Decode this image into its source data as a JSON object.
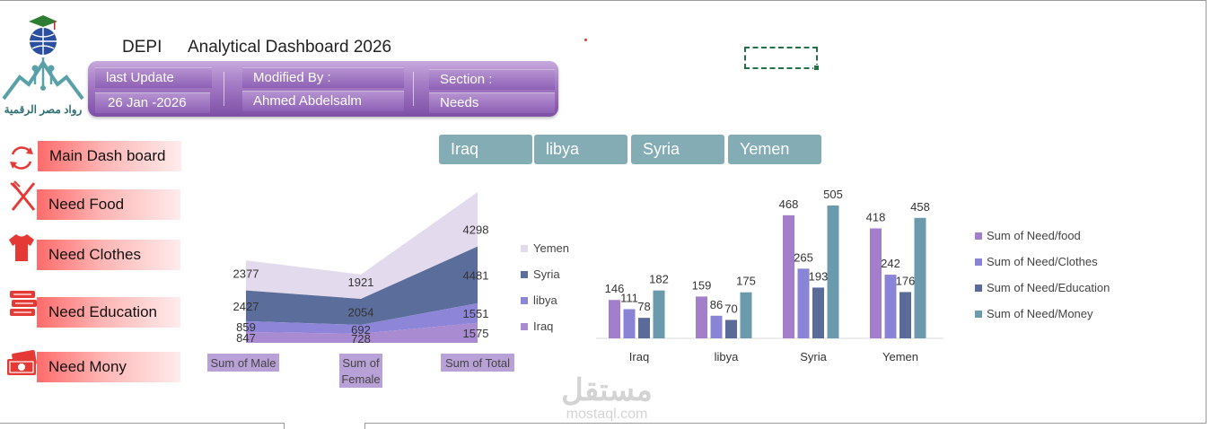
{
  "header": {
    "depi": "DEPI",
    "title": "Analytical Dashboard 2026",
    "logo_caption": "رواد مصر الرقمية"
  },
  "info": {
    "last_update_label": "last Update",
    "last_update_value": "26 Jan -2026",
    "modified_by_label": "Modified By :",
    "modified_by_value": "Ahmed Abdelsalm",
    "section_label": "Section :",
    "section_value": "Needs"
  },
  "nav": {
    "items": [
      {
        "label": "Main Dash board",
        "icon": "refresh-icon"
      },
      {
        "label": "Need Food",
        "icon": "fork-knife-icon"
      },
      {
        "label": "Need Clothes",
        "icon": "tshirt-icon"
      },
      {
        "label": "Need Education",
        "icon": "books-icon"
      },
      {
        "label": "Need Mony",
        "icon": "money-icon"
      }
    ]
  },
  "slicer": {
    "countries": [
      "Iraq",
      "libya",
      "Syria",
      "Yemen"
    ]
  },
  "watermark": {
    "arabic": "مستقل",
    "latin": "mostaql.com"
  },
  "colors": {
    "iraq": "#a98bd2",
    "libya": "#8c85d8",
    "syria": "#5a6d9b",
    "yemen": "#e4daee",
    "food": "#a37fcb",
    "clothes": "#8a84d6",
    "education": "#5a6b9a",
    "money": "#6a9aac",
    "slicer": "#84acb4",
    "nav_red": "#ff6b6b",
    "panel_purple": "#8e60b6"
  },
  "chart_data": [
    {
      "type": "area",
      "stacked": true,
      "categories": [
        "Sum of Male",
        "Sum of Female",
        "Sum of Total"
      ],
      "series": [
        {
          "name": "Iraq",
          "values": [
            847,
            728,
            1575
          ]
        },
        {
          "name": "libya",
          "values": [
            859,
            692,
            1551
          ]
        },
        {
          "name": "Syria",
          "values": [
            2427,
            2054,
            4481
          ]
        },
        {
          "name": "Yemen",
          "values": [
            2377,
            1921,
            4298
          ]
        }
      ],
      "legend_position": "right",
      "grid": false
    },
    {
      "type": "bar",
      "categories": [
        "Iraq",
        "libya",
        "Syria",
        "Yemen"
      ],
      "series": [
        {
          "name": "Sum of Need/food",
          "values": [
            146,
            159,
            468,
            418
          ]
        },
        {
          "name": "Sum of Need/Clothes",
          "values": [
            111,
            86,
            265,
            242
          ]
        },
        {
          "name": "Sum of Need/Education",
          "values": [
            78,
            70,
            193,
            176
          ]
        },
        {
          "name": "Sum of Need/Money",
          "values": [
            182,
            175,
            505,
            458
          ]
        }
      ],
      "legend_position": "right",
      "grid": false
    }
  ]
}
